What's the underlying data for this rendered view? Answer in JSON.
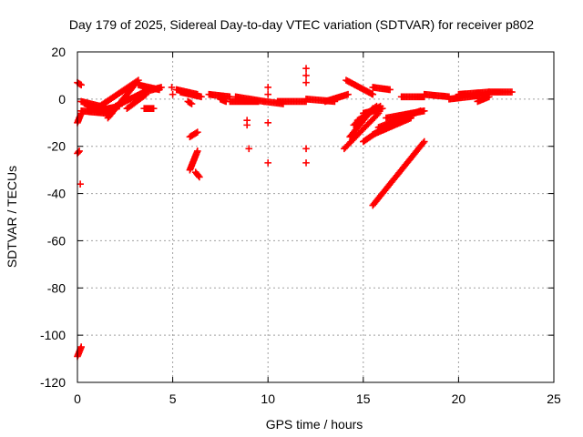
{
  "chart_data": {
    "type": "scatter",
    "title": "Day 179 of 2025, Sidereal Day-to-day VTEC variation (SDTVAR) for receiver p802",
    "xlabel": "GPS time / hours",
    "ylabel": "SDTVAR / TECUs",
    "xlim": [
      0,
      25
    ],
    "ylim": [
      -120,
      20
    ],
    "x_ticks": [
      0,
      5,
      10,
      15,
      20,
      25
    ],
    "y_ticks": [
      -120,
      -100,
      -80,
      -60,
      -40,
      -20,
      0,
      20
    ],
    "grid": true,
    "marker": "plus",
    "color": "#ff0000",
    "series": [
      {
        "name": "SDTVAR",
        "segments": [
          {
            "x": [
              0.0,
              0.2
            ],
            "y": [
              7,
              6
            ]
          },
          {
            "x": [
              0.0,
              0.1
            ],
            "y": [
              -23,
              -22
            ]
          },
          {
            "x": [
              0.0,
              0.2
            ],
            "y": [
              -109,
              -105
            ]
          },
          {
            "x": [
              0.0,
              0.2
            ],
            "y": [
              -10,
              -6
            ]
          },
          {
            "x": [
              0.2,
              1.2
            ],
            "y": [
              -1,
              -3
            ]
          },
          {
            "x": [
              0.2,
              1.5
            ],
            "y": [
              -5,
              -6
            ]
          },
          {
            "x": [
              0.5,
              1.8
            ],
            "y": [
              -3,
              -6
            ]
          },
          {
            "x": [
              1.0,
              2.2
            ],
            "y": [
              -5,
              -3
            ]
          },
          {
            "x": [
              1.0,
              3.2
            ],
            "y": [
              -4,
              8
            ]
          },
          {
            "x": [
              1.6,
              3.0
            ],
            "y": [
              -8,
              6
            ]
          },
          {
            "x": [
              2.0,
              3.5
            ],
            "y": [
              -3,
              3
            ]
          },
          {
            "x": [
              2.6,
              3.6
            ],
            "y": [
              -4,
              2
            ]
          },
          {
            "x": [
              3.2,
              4.3
            ],
            "y": [
              6,
              4
            ]
          },
          {
            "x": [
              3.5,
              4.4
            ],
            "y": [
              3,
              5
            ]
          },
          {
            "x": [
              3.5,
              4.0
            ],
            "y": [
              -4,
              -4
            ]
          },
          {
            "x": [
              5.2,
              6.3
            ],
            "y": [
              4,
              2
            ]
          },
          {
            "x": [
              5.4,
              6.5
            ],
            "y": [
              3,
              1
            ]
          },
          {
            "x": [
              5.8,
              6.0
            ],
            "y": [
              -1,
              -2
            ]
          },
          {
            "x": [
              5.9,
              6.3
            ],
            "y": [
              -16,
              -14
            ]
          },
          {
            "x": [
              5.9,
              6.3
            ],
            "y": [
              -30,
              -22
            ]
          },
          {
            "x": [
              6.2,
              6.4
            ],
            "y": [
              -31,
              -33
            ]
          },
          {
            "x": [
              6.9,
              8.0
            ],
            "y": [
              2,
              1
            ]
          },
          {
            "x": [
              7.5,
              7.8
            ],
            "y": [
              0,
              -1
            ]
          },
          {
            "x": [
              8.0,
              9.5
            ],
            "y": [
              -1,
              -1
            ]
          },
          {
            "x": [
              8.3,
              9.8
            ],
            "y": [
              1,
              -1
            ]
          },
          {
            "x": [
              9.8,
              10.8
            ],
            "y": [
              -1,
              -2
            ]
          },
          {
            "x": [
              10.5,
              12.0
            ],
            "y": [
              -1,
              -1
            ]
          },
          {
            "x": [
              12.0,
              13.5
            ],
            "y": [
              0,
              -1
            ]
          },
          {
            "x": [
              13.0,
              14.2
            ],
            "y": [
              -1,
              2
            ]
          },
          {
            "x": [
              14.1,
              15.5
            ],
            "y": [
              8,
              2
            ]
          },
          {
            "x": [
              15.5,
              16.4
            ],
            "y": [
              5,
              4
            ]
          },
          {
            "x": [
              14.0,
              15.8
            ],
            "y": [
              -21,
              -6
            ]
          },
          {
            "x": [
              14.3,
              15.5
            ],
            "y": [
              -16,
              -4
            ]
          },
          {
            "x": [
              14.5,
              15.7
            ],
            "y": [
              -11,
              -3
            ]
          },
          {
            "x": [
              14.7,
              15.9
            ],
            "y": [
              -9,
              -3
            ]
          },
          {
            "x": [
              15.0,
              16.0
            ],
            "y": [
              -6,
              -4
            ]
          },
          {
            "x": [
              15.0,
              16.8
            ],
            "y": [
              -18,
              -8
            ]
          },
          {
            "x": [
              15.5,
              17.5
            ],
            "y": [
              -15,
              -8
            ]
          },
          {
            "x": [
              15.8,
              18.0
            ],
            "y": [
              -12,
              -5
            ]
          },
          {
            "x": [
              16.2,
              18.2
            ],
            "y": [
              -8,
              -5
            ]
          },
          {
            "x": [
              15.5,
              18.2
            ],
            "y": [
              -45,
              -18
            ]
          },
          {
            "x": [
              17.0,
              18.2
            ],
            "y": [
              1,
              1
            ]
          },
          {
            "x": [
              18.2,
              19.5
            ],
            "y": [
              2,
              1
            ]
          },
          {
            "x": [
              19.5,
              21.6
            ],
            "y": [
              0,
              2
            ]
          },
          {
            "x": [
              20.0,
              21.6
            ],
            "y": [
              2,
              3
            ]
          },
          {
            "x": [
              21.0,
              21.6
            ],
            "y": [
              -1,
              1
            ]
          },
          {
            "x": [
              21.6,
              22.8
            ],
            "y": [
              3,
              3
            ]
          }
        ],
        "points": [
          {
            "x": 0.15,
            "y": -36
          },
          {
            "x": 4.95,
            "y": 5
          },
          {
            "x": 5.0,
            "y": 2
          },
          {
            "x": 8.9,
            "y": -9
          },
          {
            "x": 8.9,
            "y": -11
          },
          {
            "x": 9.0,
            "y": -21
          },
          {
            "x": 10.0,
            "y": 5
          },
          {
            "x": 10.0,
            "y": 2
          },
          {
            "x": 10.0,
            "y": -10
          },
          {
            "x": 10.0,
            "y": -27
          },
          {
            "x": 12.0,
            "y": 13
          },
          {
            "x": 12.0,
            "y": 10
          },
          {
            "x": 12.0,
            "y": 7
          },
          {
            "x": 12.0,
            "y": -21
          },
          {
            "x": 12.0,
            "y": -27
          }
        ]
      }
    ]
  }
}
